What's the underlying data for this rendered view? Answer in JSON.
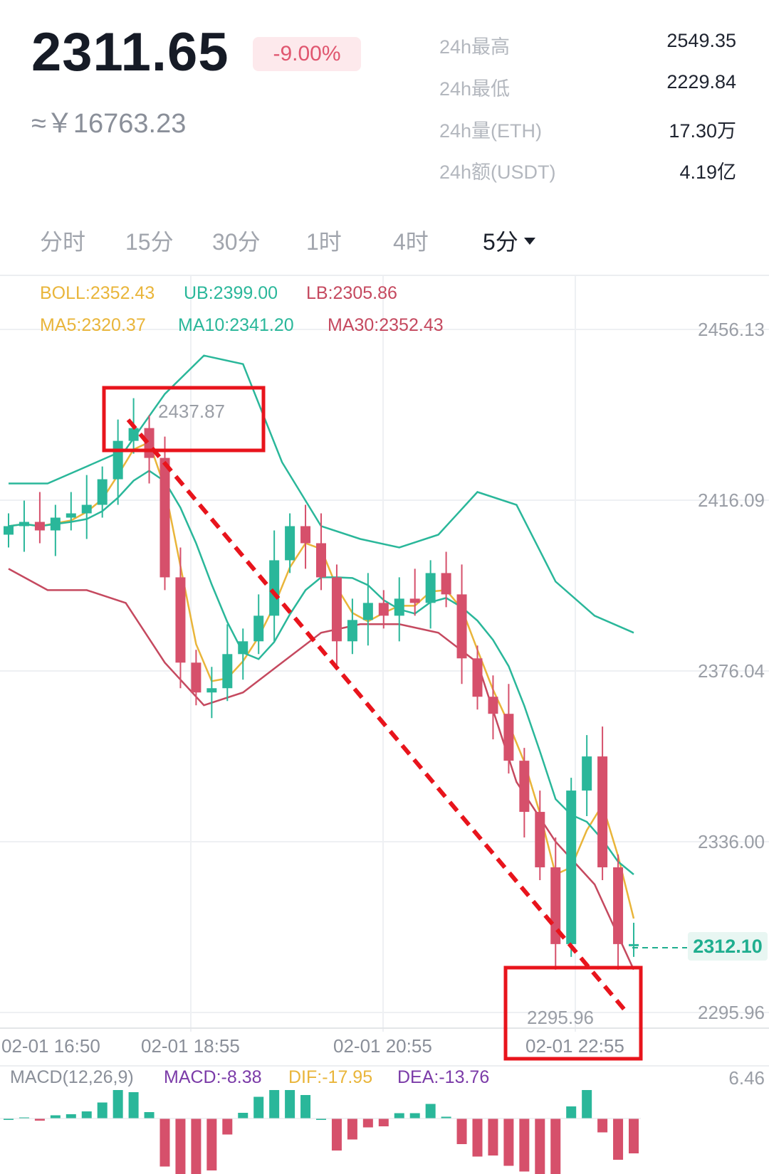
{
  "header": {
    "price": "2311.65",
    "change_pct": "-9.00%",
    "price_cny": "≈￥16763.23"
  },
  "stats": [
    {
      "label": "24h最高",
      "value": "2549.35"
    },
    {
      "label": "24h最低",
      "value": "2229.84"
    },
    {
      "label": "24h量(ETH)",
      "value": "17.30万"
    },
    {
      "label": "24h额(USDT)",
      "value": "4.19亿"
    }
  ],
  "tabs": [
    {
      "label": "分时",
      "active": false
    },
    {
      "label": "15分",
      "active": false
    },
    {
      "label": "30分",
      "active": false
    },
    {
      "label": "1时",
      "active": false
    },
    {
      "label": "4时",
      "active": false
    },
    {
      "label": "5分",
      "active": true
    }
  ],
  "indicators": {
    "boll": "BOLL:2352.43",
    "ub": "UB:2399.00",
    "lb": "LB:2305.86",
    "ma5": "MA5:2320.37",
    "ma10": "MA10:2341.20",
    "ma30": "MA30:2352.43"
  },
  "colors": {
    "up": "#2ab79a",
    "down": "#d6506b",
    "boll_mid": "#e9b53a",
    "ub": "#2ab79a",
    "lb": "#c5495f",
    "ma5": "#e9b53a",
    "ma10": "#2ab79a",
    "ma30": "#c5495f",
    "macd": "#7b3ba8",
    "annotation": "#e8141c"
  },
  "y_axis": [
    "2456.13",
    "2416.09",
    "2376.04",
    "2336.00",
    "2295.96"
  ],
  "x_axis": [
    "02-01 16:50",
    "02-01 18:55",
    "02-01 20:55",
    "02-01 22:55"
  ],
  "annotations": {
    "high_label": "2437.87",
    "low_label": "2295.96",
    "current_price": "2312.10"
  },
  "macd": {
    "title": "MACD(12,26,9)",
    "macd": "MACD:-8.38",
    "dif": "DIF:-17.95",
    "dea": "DEA:-13.76",
    "axis_max": "6.46"
  },
  "chart_data": {
    "type": "candlestick",
    "interval": "5分",
    "ylim": [
      2290,
      2462
    ],
    "ticks": [
      2456.13,
      2416.09,
      2376.04,
      2336.0,
      2295.96
    ],
    "x_labels": [
      "02-01 16:50",
      "02-01 18:55",
      "02-01 20:55",
      "02-01 22:55"
    ],
    "high": 2437.87,
    "low": 2295.96,
    "last": 2312.1,
    "close_path": [
      2410,
      2411,
      2409,
      2412,
      2413,
      2415,
      2421,
      2430,
      2433,
      2426,
      2398,
      2378,
      2371,
      2372,
      2380,
      2383,
      2389,
      2402,
      2410,
      2406,
      2398,
      2383,
      2388,
      2392,
      2389,
      2393,
      2392,
      2399,
      2394,
      2379,
      2370,
      2366,
      2355,
      2343,
      2330,
      2312,
      2348,
      2356,
      2330,
      2312,
      2312
    ],
    "ub_path": [
      2420,
      2420,
      2424,
      2428,
      2441,
      2450,
      2448,
      2425,
      2410,
      2407,
      2405,
      2408,
      2418,
      2415,
      2397,
      2389,
      2385
    ],
    "lb_path": [
      2400,
      2395,
      2395,
      2392,
      2378,
      2368,
      2371,
      2378,
      2385,
      2387,
      2387,
      2385,
      2378,
      2350,
      2336,
      2326,
      2306
    ]
  }
}
